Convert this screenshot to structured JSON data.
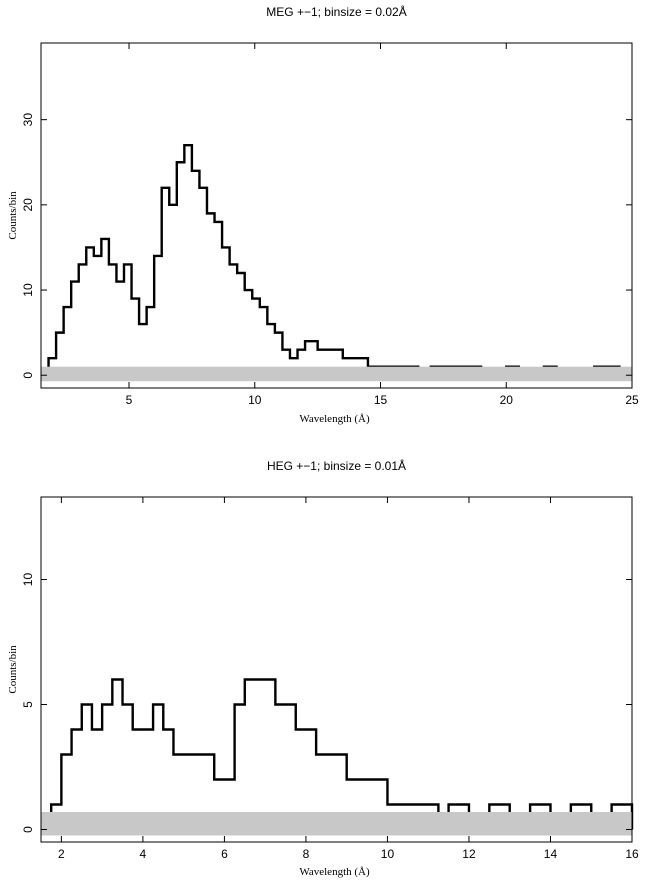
{
  "chart_data": [
    {
      "type": "line",
      "title": "MEG +−1; binsize = 0.02Å",
      "xlabel": "Wavelength (Å)",
      "ylabel": "Counts/bin",
      "xlim": [
        1.5,
        25
      ],
      "ylim": [
        -1.5,
        39
      ],
      "xticks": [
        5,
        10,
        15,
        20,
        25
      ],
      "yticks": [
        0,
        10,
        20,
        30
      ],
      "grid": false,
      "legend": "none",
      "series": [
        {
          "style": "thick black histogram",
          "x": [
            1.5,
            1.8,
            2.1,
            2.4,
            2.7,
            3.0,
            3.3,
            3.6,
            3.9,
            4.2,
            4.5,
            4.8,
            5.1,
            5.4,
            5.7,
            6.0,
            6.3,
            6.6,
            6.9,
            7.2,
            7.5,
            7.8,
            8.1,
            8.4,
            8.7,
            9.0,
            9.3,
            9.6,
            9.9,
            10.2,
            10.5,
            10.8,
            11.1,
            11.4,
            11.7,
            12.0,
            12.5,
            13.0,
            13.5,
            14.0,
            14.5,
            15.0,
            15.5,
            16.0,
            16.5,
            17.0,
            17.5,
            18.0,
            18.5,
            19.0,
            19.5,
            20.0,
            20.5,
            21.0,
            21.5,
            22.0,
            22.5,
            23.0,
            23.5,
            24.0,
            24.5,
            25.0
          ],
          "y": [
            0,
            2,
            5,
            8,
            11,
            13,
            15,
            14,
            16,
            13,
            11,
            13,
            9,
            6,
            8,
            14,
            22,
            20,
            25,
            27,
            24,
            22,
            19,
            18,
            15,
            13,
            12,
            10,
            9,
            8,
            6,
            5,
            3,
            2,
            3,
            4,
            3,
            3,
            2,
            2,
            1,
            1,
            1,
            1,
            0,
            1,
            1,
            1,
            1,
            0,
            0,
            1,
            0,
            0,
            1,
            0,
            0,
            0,
            1,
            1,
            0,
            0
          ]
        },
        {
          "style": "grey background band",
          "x": [
            1.5,
            25
          ],
          "y": [
            1,
            1
          ]
        }
      ]
    },
    {
      "type": "line",
      "title": "HEG +−1; binsize = 0.01Å",
      "xlabel": "Wavelength (Å)",
      "ylabel": "Counts/bin",
      "xlim": [
        1.5,
        16
      ],
      "ylim": [
        -0.5,
        13.3
      ],
      "xticks": [
        2,
        4,
        6,
        8,
        10,
        12,
        14,
        16
      ],
      "yticks": [
        0,
        5,
        10
      ],
      "grid": false,
      "legend": "none",
      "series": [
        {
          "style": "thick black histogram",
          "x": [
            1.5,
            1.75,
            2.0,
            2.25,
            2.5,
            2.75,
            3.0,
            3.25,
            3.5,
            3.75,
            4.0,
            4.25,
            4.5,
            4.75,
            5.0,
            5.25,
            5.5,
            5.75,
            6.0,
            6.25,
            6.5,
            6.75,
            7.0,
            7.25,
            7.5,
            7.75,
            8.0,
            8.25,
            8.5,
            8.75,
            9.0,
            9.25,
            9.5,
            9.75,
            10.0,
            10.25,
            10.5,
            10.75,
            11.0,
            11.25,
            11.5,
            11.75,
            12.0,
            12.5,
            13.0,
            13.5,
            14.0,
            14.5,
            15.0,
            15.5,
            16.0
          ],
          "y": [
            0,
            1,
            3,
            4,
            5,
            4,
            5,
            6,
            5,
            4,
            4,
            5,
            4,
            3,
            3,
            3,
            3,
            2,
            2,
            5,
            6,
            6,
            6,
            5,
            5,
            4,
            4,
            3,
            3,
            3,
            2,
            2,
            2,
            2,
            1,
            1,
            1,
            1,
            1,
            0,
            1,
            1,
            0,
            1,
            0,
            1,
            0,
            1,
            0,
            1,
            0
          ]
        },
        {
          "style": "grey background band",
          "x": [
            1.5,
            16
          ],
          "y": [
            0.7,
            0.7
          ]
        }
      ]
    }
  ]
}
